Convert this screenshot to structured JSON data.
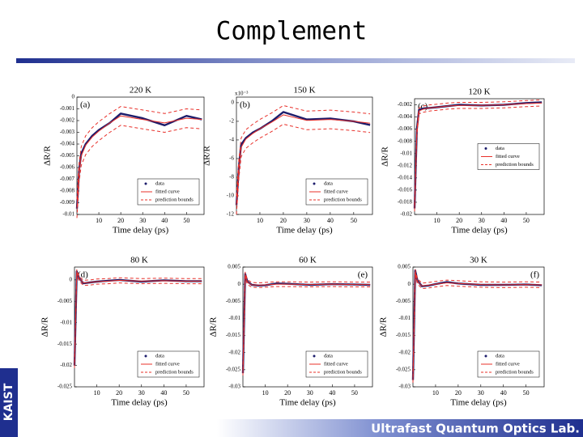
{
  "slide": {
    "title": "Complement",
    "logo": "KAIST",
    "footer": "Ultrafast Quantum Optics Lab."
  },
  "chart_data": [
    {
      "type": "line",
      "title": "220 K",
      "annotation": "(a)",
      "annotation_position": "upper left",
      "x_label": "Time delay (ps)",
      "y_label": "ΔR/R",
      "x": [
        0,
        1,
        2,
        4,
        7,
        10,
        15,
        20,
        30,
        40,
        50,
        57
      ],
      "xlim": [
        0,
        58
      ],
      "xticks": [
        10,
        20,
        30,
        40,
        50
      ],
      "ylim": [
        -0.01,
        0
      ],
      "yticks": [
        0,
        -0.001,
        -0.002,
        -0.003,
        -0.004,
        -0.005,
        -0.006,
        -0.007,
        -0.008,
        -0.009,
        -0.01
      ],
      "legend": "lower right",
      "series": [
        {
          "name": "data",
          "color": "#1c1c6b",
          "values": [
            -0.0095,
            -0.0062,
            -0.0048,
            -0.004,
            -0.0033,
            -0.0028,
            -0.0022,
            -0.0014,
            -0.0018,
            -0.0024,
            -0.0016,
            -0.0019
          ]
        },
        {
          "name": "fitted curve",
          "color": "#e8302a",
          "values": [
            -0.0095,
            -0.0064,
            -0.005,
            -0.0041,
            -0.0034,
            -0.0029,
            -0.0022,
            -0.0016,
            -0.0019,
            -0.0022,
            -0.0018,
            -0.0019
          ]
        },
        {
          "name": "prediction bounds",
          "color": "#e8302a",
          "dash": true,
          "values": [
            -0.0087,
            -0.0056,
            -0.0042,
            -0.0033,
            -0.0026,
            -0.0021,
            -0.0014,
            -0.0008,
            -0.0011,
            -0.0014,
            -0.001,
            -0.0011
          ],
          "lower": [
            -0.0103,
            -0.0072,
            -0.0058,
            -0.0049,
            -0.0042,
            -0.0037,
            -0.003,
            -0.0024,
            -0.0027,
            -0.003,
            -0.0026,
            -0.0027
          ]
        }
      ]
    },
    {
      "type": "line",
      "title": "150 K",
      "annotation": "(b)",
      "annotation_position": "upper left",
      "x_label": "Time delay (ps)",
      "y_label": "ΔR/R",
      "y_multiplier": "x10⁻³",
      "x": [
        0,
        1,
        2,
        4,
        7,
        10,
        15,
        20,
        30,
        40,
        50,
        57
      ],
      "xlim": [
        0,
        58
      ],
      "xticks": [
        10,
        20,
        30,
        40,
        50
      ],
      "ylim": [
        -12,
        0.6
      ],
      "yticks": [
        0,
        -2,
        -4,
        -6,
        -8,
        -10,
        -12
      ],
      "legend": "lower right",
      "series": [
        {
          "name": "data",
          "color": "#1c1c6b",
          "values": [
            -11,
            -7,
            -4.5,
            -3.8,
            -3.2,
            -2.8,
            -2,
            -1,
            -1.8,
            -1.7,
            -2,
            -2.4
          ]
        },
        {
          "name": "fitted curve",
          "color": "#e8302a",
          "values": [
            -11,
            -7.2,
            -4.8,
            -3.9,
            -3.3,
            -2.8,
            -2.1,
            -1.3,
            -1.9,
            -1.8,
            -2,
            -2.2
          ]
        },
        {
          "name": "prediction bounds",
          "color": "#e8302a",
          "dash": true,
          "values": [
            -10,
            -6.2,
            -3.8,
            -2.9,
            -2.3,
            -1.8,
            -1.1,
            -0.3,
            -0.9,
            -0.8,
            -1,
            -1.2
          ],
          "lower": [
            -12,
            -8.2,
            -5.8,
            -4.9,
            -4.3,
            -3.8,
            -3.1,
            -2.3,
            -2.9,
            -2.8,
            -3,
            -3.2
          ]
        }
      ]
    },
    {
      "type": "line",
      "title": "120 K",
      "annotation": "(c)",
      "annotation_position": "upper left",
      "x_label": "Time delay (ps)",
      "y_label": "ΔR/R",
      "x": [
        0,
        1,
        2,
        4,
        7,
        10,
        15,
        20,
        30,
        40,
        50,
        57
      ],
      "xlim": [
        0,
        58
      ],
      "xticks": [
        10,
        20,
        30,
        40,
        50
      ],
      "ylim": [
        -0.02,
        -0.001
      ],
      "yticks": [
        -0.002,
        -0.004,
        -0.006,
        -0.008,
        -0.01,
        -0.012,
        -0.014,
        -0.016,
        -0.018,
        -0.02
      ],
      "legend": "center right",
      "series": [
        {
          "name": "data",
          "color": "#1c1c6b",
          "values": [
            -0.019,
            -0.006,
            -0.0028,
            -0.0026,
            -0.0025,
            -0.0024,
            -0.0022,
            -0.002,
            -0.0021,
            -0.002,
            -0.0017,
            -0.0016
          ]
        },
        {
          "name": "fitted curve",
          "color": "#e8302a",
          "values": [
            -0.019,
            -0.0065,
            -0.003,
            -0.0027,
            -0.0025,
            -0.0024,
            -0.0022,
            -0.0021,
            -0.0021,
            -0.002,
            -0.0018,
            -0.0017
          ]
        },
        {
          "name": "prediction bounds",
          "color": "#e8302a",
          "dash": true,
          "values": [
            -0.0185,
            -0.006,
            -0.0025,
            -0.0022,
            -0.002,
            -0.0019,
            -0.0017,
            -0.0016,
            -0.0016,
            -0.0015,
            -0.0013,
            -0.0012
          ],
          "lower": [
            -0.0195,
            -0.007,
            -0.0035,
            -0.0032,
            -0.003,
            -0.0029,
            -0.0027,
            -0.0026,
            -0.0026,
            -0.0025,
            -0.0023,
            -0.0022
          ]
        }
      ]
    },
    {
      "type": "line",
      "title": "80 K",
      "annotation": "(d)",
      "annotation_position": "upper left",
      "x_label": "Time delay (ps)",
      "y_label": "ΔR/R",
      "x": [
        0,
        1,
        2,
        4,
        7,
        10,
        15,
        20,
        30,
        40,
        50,
        57
      ],
      "xlim": [
        0,
        58
      ],
      "xticks": [
        10,
        20,
        30,
        40,
        50
      ],
      "ylim": [
        -0.025,
        0.003
      ],
      "yticks": [
        0,
        -0.005,
        -0.01,
        -0.015,
        -0.02,
        -0.025
      ],
      "legend": "lower right",
      "series": [
        {
          "name": "data",
          "color": "#1c1c6b",
          "values": [
            -0.02,
            0.002,
            0.0005,
            -0.0008,
            -0.0006,
            -0.0004,
            -0.0002,
            0,
            -0.0004,
            -0.0001,
            -0.0003,
            -0.0003
          ]
        },
        {
          "name": "fitted curve",
          "color": "#e8302a",
          "values": [
            -0.02,
            0.0018,
            0.0004,
            -0.0007,
            -0.0006,
            -0.0004,
            -0.0003,
            -0.0001,
            -0.0003,
            -0.0002,
            -0.0003,
            -0.0003
          ]
        },
        {
          "name": "prediction bounds",
          "color": "#e8302a",
          "dash": true,
          "values": [
            -0.0194,
            0.0024,
            0.001,
            -0.0001,
            0,
            0.0002,
            0.0003,
            0.0005,
            0.0003,
            0.0004,
            0.0003,
            0.0003
          ],
          "lower": [
            -0.0206,
            0.0012,
            -0.0002,
            -0.0013,
            -0.0012,
            -0.001,
            -0.0009,
            -0.0007,
            -0.0009,
            -0.0008,
            -0.0009,
            -0.0009
          ]
        }
      ]
    },
    {
      "type": "line",
      "title": "60 K",
      "annotation": "(e)",
      "annotation_position": "upper right",
      "x_label": "Time delay (ps)",
      "y_label": "ΔR/R",
      "x": [
        0,
        1,
        2,
        4,
        7,
        10,
        15,
        20,
        30,
        40,
        50,
        57
      ],
      "xlim": [
        0,
        58
      ],
      "xticks": [
        10,
        20,
        30,
        40,
        50
      ],
      "ylim": [
        -0.03,
        0.005
      ],
      "yticks": [
        0.005,
        0,
        -0.005,
        -0.01,
        -0.015,
        -0.02,
        -0.025,
        -0.03
      ],
      "legend": "lower right",
      "series": [
        {
          "name": "data",
          "color": "#1c1c6b",
          "values": [
            -0.026,
            0.003,
            0.0008,
            -0.0002,
            -0.0004,
            -0.0003,
            0.0002,
            0.0001,
            -0.0002,
            0,
            -0.0001,
            -0.0002
          ]
        },
        {
          "name": "fitted curve",
          "color": "#e8302a",
          "values": [
            -0.026,
            0.0028,
            0.0006,
            -0.0002,
            -0.0003,
            -0.0002,
            0,
            0,
            -0.0001,
            0,
            -0.0001,
            -0.0001
          ]
        },
        {
          "name": "prediction bounds",
          "color": "#e8302a",
          "dash": true,
          "values": [
            -0.0253,
            0.0035,
            0.0013,
            0.0005,
            0.0004,
            0.0005,
            0.0007,
            0.0007,
            0.0006,
            0.0007,
            0.0006,
            0.0006
          ],
          "lower": [
            -0.0267,
            0.0021,
            -0.0001,
            -0.0009,
            -0.001,
            -0.0009,
            -0.0007,
            -0.0007,
            -0.0008,
            -0.0007,
            -0.0008,
            -0.0008
          ]
        }
      ]
    },
    {
      "type": "line",
      "title": "30 K",
      "annotation": "(f)",
      "annotation_position": "upper right",
      "x_label": "Time delay (ps)",
      "y_label": "ΔR/R",
      "x": [
        0,
        1,
        2,
        4,
        7,
        10,
        15,
        20,
        30,
        40,
        50,
        57
      ],
      "xlim": [
        0,
        58
      ],
      "xticks": [
        10,
        20,
        30,
        40,
        50
      ],
      "ylim": [
        -0.03,
        0.005
      ],
      "yticks": [
        0.005,
        0,
        -0.005,
        -0.01,
        -0.015,
        -0.02,
        -0.025,
        -0.03
      ],
      "legend": "lower right",
      "series": [
        {
          "name": "data",
          "color": "#1c1c6b",
          "values": [
            -0.028,
            0.004,
            0.001,
            -0.0006,
            -0.0004,
            0,
            0.0006,
            0.0002,
            -0.0002,
            -0.0002,
            -0.0001,
            -0.0003
          ]
        },
        {
          "name": "fitted curve",
          "color": "#e8302a",
          "values": [
            -0.028,
            0.0035,
            0.0008,
            -0.0005,
            -0.0003,
            0,
            0.0004,
            0.0002,
            -0.0001,
            -0.0002,
            -0.0001,
            -0.0002
          ]
        },
        {
          "name": "prediction bounds",
          "color": "#e8302a",
          "dash": true,
          "values": [
            -0.0272,
            0.0043,
            0.0016,
            0.0003,
            0.0005,
            0.0008,
            0.0012,
            0.001,
            0.0007,
            0.0006,
            0.0007,
            0.0006
          ],
          "lower": [
            -0.0288,
            0.0027,
            0,
            -0.0013,
            -0.0011,
            -0.0008,
            -0.0004,
            -0.0006,
            -0.0009,
            -0.001,
            -0.0009,
            -0.001
          ]
        }
      ]
    }
  ]
}
